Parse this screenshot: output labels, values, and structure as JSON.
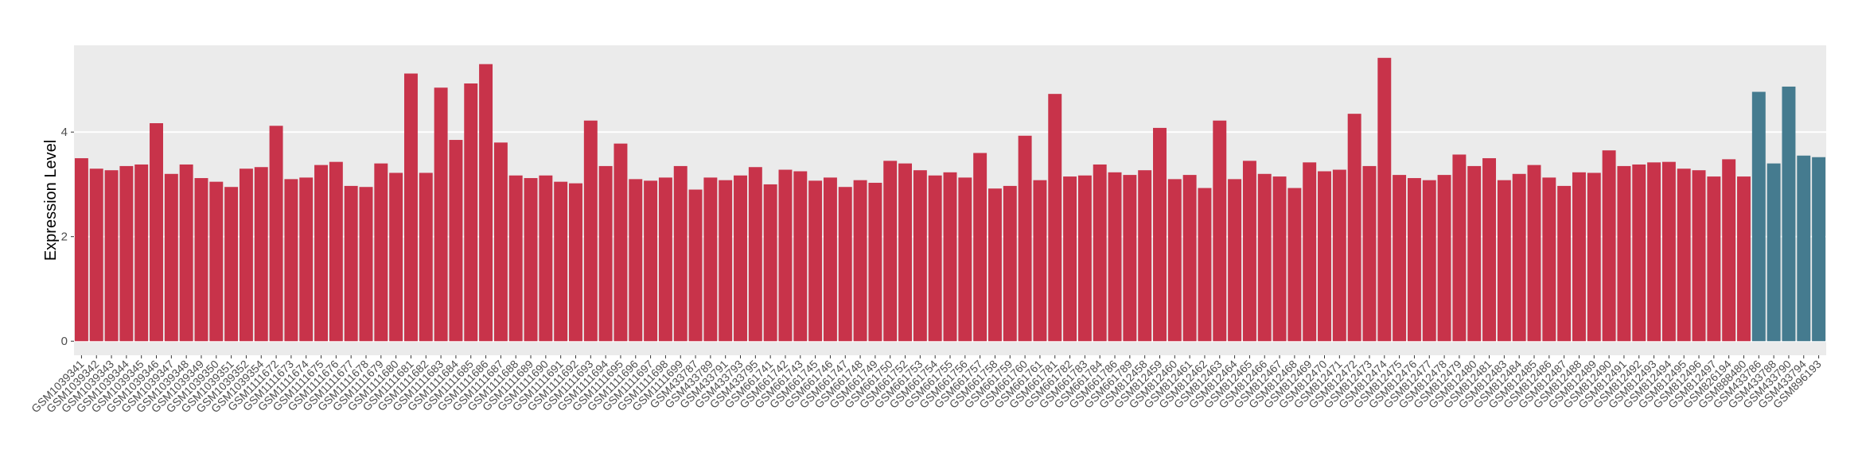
{
  "chart_data": {
    "type": "bar",
    "y_label": "Expression Level",
    "categories": [
      "GSM1039341",
      "GSM1039342",
      "GSM1039343",
      "GSM1039344",
      "GSM1039345",
      "GSM1039346",
      "GSM1039347",
      "GSM1039348",
      "GSM1039349",
      "GSM1039350",
      "GSM1039351",
      "GSM1039352",
      "GSM1039354",
      "GSM1111672",
      "GSM1111673",
      "GSM1111674",
      "GSM1111675",
      "GSM1111676",
      "GSM1111677",
      "GSM1111678",
      "GSM1111679",
      "GSM1111680",
      "GSM1111681",
      "GSM1111682",
      "GSM1111683",
      "GSM1111684",
      "GSM1111685",
      "GSM1111686",
      "GSM1111687",
      "GSM1111688",
      "GSM1111689",
      "GSM1111690",
      "GSM1111691",
      "GSM1111692",
      "GSM1111693",
      "GSM1111694",
      "GSM1111695",
      "GSM1111696",
      "GSM1111697",
      "GSM1111698",
      "GSM1111699",
      "GSM433787",
      "GSM433789",
      "GSM433791",
      "GSM433793",
      "GSM433795",
      "GSM661741",
      "GSM661742",
      "GSM661743",
      "GSM661745",
      "GSM661746",
      "GSM661747",
      "GSM661748",
      "GSM661749",
      "GSM661750",
      "GSM661752",
      "GSM661753",
      "GSM661754",
      "GSM661755",
      "GSM661756",
      "GSM661757",
      "GSM661758",
      "GSM661759",
      "GSM661760",
      "GSM661761",
      "GSM661781",
      "GSM661782",
      "GSM661783",
      "GSM661784",
      "GSM661786",
      "GSM661789",
      "GSM812458",
      "GSM812459",
      "GSM812460",
      "GSM812461",
      "GSM812462",
      "GSM812463",
      "GSM812464",
      "GSM812465",
      "GSM812466",
      "GSM812467",
      "GSM812468",
      "GSM812469",
      "GSM812470",
      "GSM812471",
      "GSM812472",
      "GSM812473",
      "GSM812474",
      "GSM812475",
      "GSM812476",
      "GSM812477",
      "GSM812478",
      "GSM812479",
      "GSM812480",
      "GSM812481",
      "GSM812483",
      "GSM812484",
      "GSM812485",
      "GSM812486",
      "GSM812487",
      "GSM812488",
      "GSM812489",
      "GSM812490",
      "GSM812491",
      "GSM812492",
      "GSM812493",
      "GSM812494",
      "GSM812495",
      "GSM812496",
      "GSM812497",
      "GSM826194",
      "GSM888480",
      "GSM433786",
      "GSM433788",
      "GSM433790",
      "GSM433794",
      "GSM896193"
    ],
    "values": [
      3.5,
      3.3,
      3.27,
      3.35,
      3.38,
      4.17,
      3.2,
      3.38,
      3.12,
      3.05,
      2.95,
      3.3,
      3.33,
      4.12,
      3.1,
      3.13,
      3.37,
      3.43,
      2.97,
      2.95,
      3.4,
      3.22,
      5.12,
      3.22,
      4.85,
      3.85,
      4.93,
      5.3,
      3.8,
      3.17,
      3.12,
      3.17,
      3.05,
      3.02,
      4.22,
      3.35,
      3.78,
      3.1,
      3.07,
      3.13,
      3.35,
      2.9,
      3.13,
      3.08,
      3.17,
      3.33,
      3.0,
      3.28,
      3.25,
      3.07,
      3.13,
      2.95,
      3.08,
      3.03,
      3.45,
      3.4,
      3.27,
      3.17,
      3.23,
      3.13,
      3.6,
      2.92,
      2.97,
      3.93,
      3.08,
      4.73,
      3.15,
      3.17,
      3.38,
      3.23,
      3.18,
      3.27,
      4.08,
      3.1,
      3.18,
      2.93,
      4.22,
      3.1,
      3.45,
      3.2,
      3.15,
      2.93,
      3.42,
      3.25,
      3.28,
      4.35,
      3.35,
      5.42,
      3.18,
      3.12,
      3.08,
      3.18,
      3.57,
      3.35,
      3.5,
      3.08,
      3.2,
      3.37,
      3.13,
      2.97,
      3.23,
      3.22,
      3.65,
      3.35,
      3.38,
      3.42,
      3.43,
      3.3,
      3.27,
      3.15,
      3.48,
      3.15,
      4.77,
      3.4,
      4.87,
      3.55,
      3.52
    ],
    "colors": [
      "#c8334a",
      "#c8334a",
      "#c8334a",
      "#c8334a",
      "#c8334a",
      "#c8334a",
      "#c8334a",
      "#c8334a",
      "#c8334a",
      "#c8334a",
      "#c8334a",
      "#c8334a",
      "#c8334a",
      "#c8334a",
      "#c8334a",
      "#c8334a",
      "#c8334a",
      "#c8334a",
      "#c8334a",
      "#c8334a",
      "#c8334a",
      "#c8334a",
      "#c8334a",
      "#c8334a",
      "#c8334a",
      "#c8334a",
      "#c8334a",
      "#c8334a",
      "#c8334a",
      "#c8334a",
      "#c8334a",
      "#c8334a",
      "#c8334a",
      "#c8334a",
      "#c8334a",
      "#c8334a",
      "#c8334a",
      "#c8334a",
      "#c8334a",
      "#c8334a",
      "#c8334a",
      "#c8334a",
      "#c8334a",
      "#c8334a",
      "#c8334a",
      "#c8334a",
      "#c8334a",
      "#c8334a",
      "#c8334a",
      "#c8334a",
      "#c8334a",
      "#c8334a",
      "#c8334a",
      "#c8334a",
      "#c8334a",
      "#c8334a",
      "#c8334a",
      "#c8334a",
      "#c8334a",
      "#c8334a",
      "#c8334a",
      "#c8334a",
      "#c8334a",
      "#c8334a",
      "#c8334a",
      "#c8334a",
      "#c8334a",
      "#c8334a",
      "#c8334a",
      "#c8334a",
      "#c8334a",
      "#c8334a",
      "#c8334a",
      "#c8334a",
      "#c8334a",
      "#c8334a",
      "#c8334a",
      "#c8334a",
      "#c8334a",
      "#c8334a",
      "#c8334a",
      "#c8334a",
      "#c8334a",
      "#c8334a",
      "#c8334a",
      "#c8334a",
      "#c8334a",
      "#c8334a",
      "#c8334a",
      "#c8334a",
      "#c8334a",
      "#c8334a",
      "#c8334a",
      "#c8334a",
      "#c8334a",
      "#c8334a",
      "#c8334a",
      "#c8334a",
      "#c8334a",
      "#c8334a",
      "#c8334a",
      "#c8334a",
      "#c8334a",
      "#c8334a",
      "#c8334a",
      "#c8334a",
      "#c8334a",
      "#c8334a",
      "#c8334a",
      "#c8334a",
      "#c8334a",
      "#c8334a",
      "#457b8f",
      "#457b8f",
      "#457b8f",
      "#457b8f",
      "#457b8f"
    ],
    "ylim": [
      -0.27,
      5.66
    ],
    "yticks": [
      0,
      2,
      4
    ],
    "grid": true
  }
}
